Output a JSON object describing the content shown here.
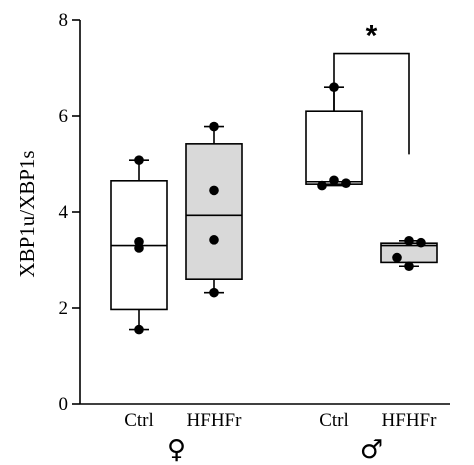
{
  "chart_data": {
    "type": "box",
    "ylabel": "XBP1u/XBP1s",
    "ylim": [
      0,
      8
    ],
    "yticks": [
      "0",
      "2",
      "4",
      "6",
      "8"
    ],
    "grid": false,
    "groups": [
      {
        "category": "Ctrl",
        "sex_label": "♀",
        "fill": "#ffffff",
        "box": {
          "min": 1.55,
          "q1": 1.97,
          "median": 3.3,
          "q3": 4.65,
          "max": 5.08
        },
        "points": [
          5.08,
          3.38,
          3.25,
          1.55
        ]
      },
      {
        "category": "HFHFr",
        "sex_label": "♀",
        "fill": "#d9d9d9",
        "box": {
          "min": 2.32,
          "q1": 2.6,
          "median": 3.93,
          "q3": 5.42,
          "max": 5.78
        },
        "points": [
          5.78,
          4.45,
          3.42,
          2.32
        ]
      },
      {
        "category": "Ctrl",
        "sex_label": "♂",
        "fill": "#ffffff",
        "box": {
          "min": 4.55,
          "q1": 4.58,
          "median": 4.63,
          "q3": 6.1,
          "max": 6.6
        },
        "points": [
          6.6,
          4.66,
          4.6,
          4.55
        ]
      },
      {
        "category": "HFHFr",
        "sex_label": "♂",
        "fill": "#d9d9d9",
        "box": {
          "min": 2.87,
          "q1": 2.95,
          "median": 3.3,
          "q3": 3.35,
          "max": 3.4
        },
        "points": [
          3.4,
          3.36,
          3.05,
          2.87
        ]
      }
    ],
    "significance": {
      "between": [
        2,
        3
      ],
      "label": "*",
      "y_left": 6.1,
      "y_right": 5.2,
      "y_top": 7.3
    }
  },
  "colors": {
    "axis": "#000000",
    "box_ctrl": "#ffffff",
    "box_hfhfr": "#d9d9d9",
    "point": "#000000"
  }
}
